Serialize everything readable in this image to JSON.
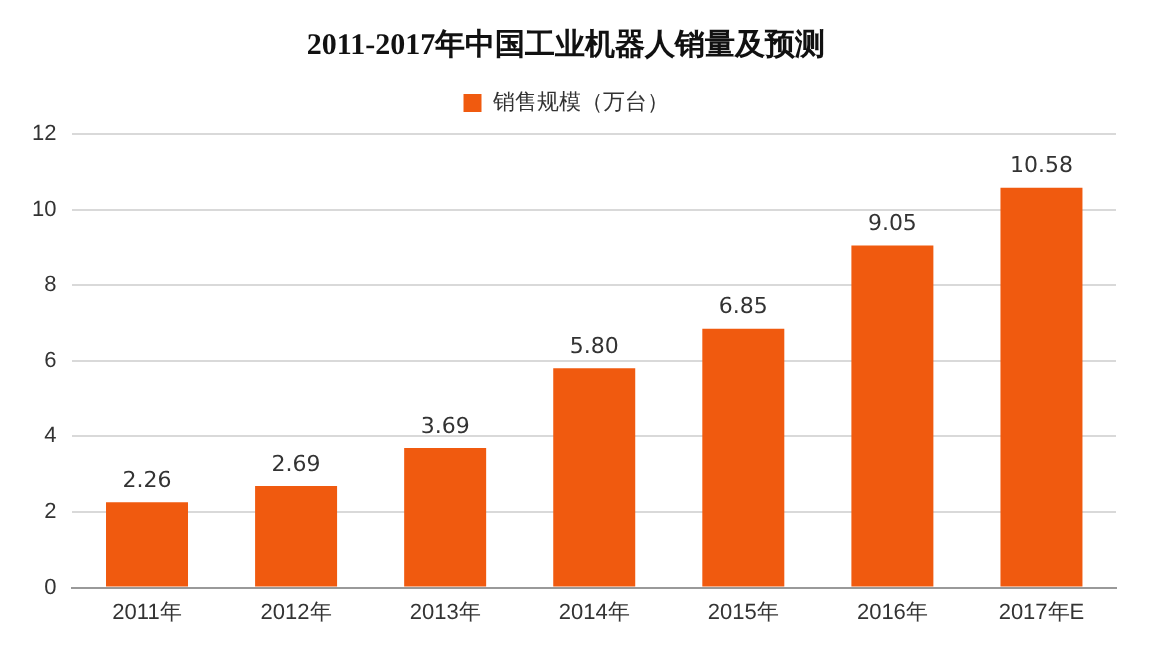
{
  "chart_data": {
    "type": "bar",
    "title": "2011-2017年中国工业机器人销量及预测",
    "categories": [
      "2011年",
      "2012年",
      "2013年",
      "2014年",
      "2015年",
      "2016年",
      "2017年E"
    ],
    "series": [
      {
        "name": "销售规模（万台）",
        "color": "#f05a0f",
        "values": [
          2.26,
          2.69,
          3.69,
          5.8,
          6.85,
          9.05,
          10.58
        ]
      }
    ],
    "value_labels": [
      "2.26",
      "2.69",
      "3.69",
      "5.80",
      "6.85",
      "9.05",
      "10.58"
    ],
    "ylim": [
      0,
      12
    ],
    "yticks": [
      0,
      2,
      4,
      6,
      8,
      10,
      12
    ],
    "grid": "y",
    "legend": "top"
  }
}
